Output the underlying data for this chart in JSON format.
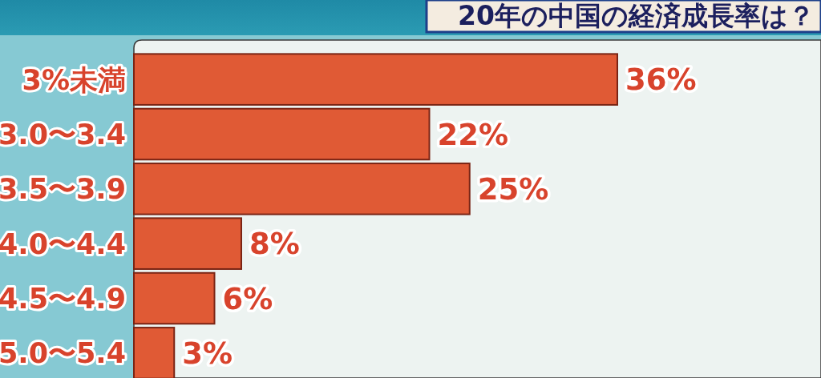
{
  "chart_data": {
    "type": "bar",
    "orientation": "horizontal",
    "title": "20年の中国の経済成長率は？",
    "categories": [
      "3%未満",
      "3.0〜3.4",
      "3.5〜3.9",
      "4.0〜4.4",
      "4.5〜4.9",
      "5.0〜5.4"
    ],
    "values": [
      36,
      22,
      25,
      8,
      6,
      3
    ],
    "color": "#e05a35",
    "value_labels": [
      "36%",
      "22%",
      "25%",
      "8%",
      "6%",
      "3%"
    ]
  }
}
